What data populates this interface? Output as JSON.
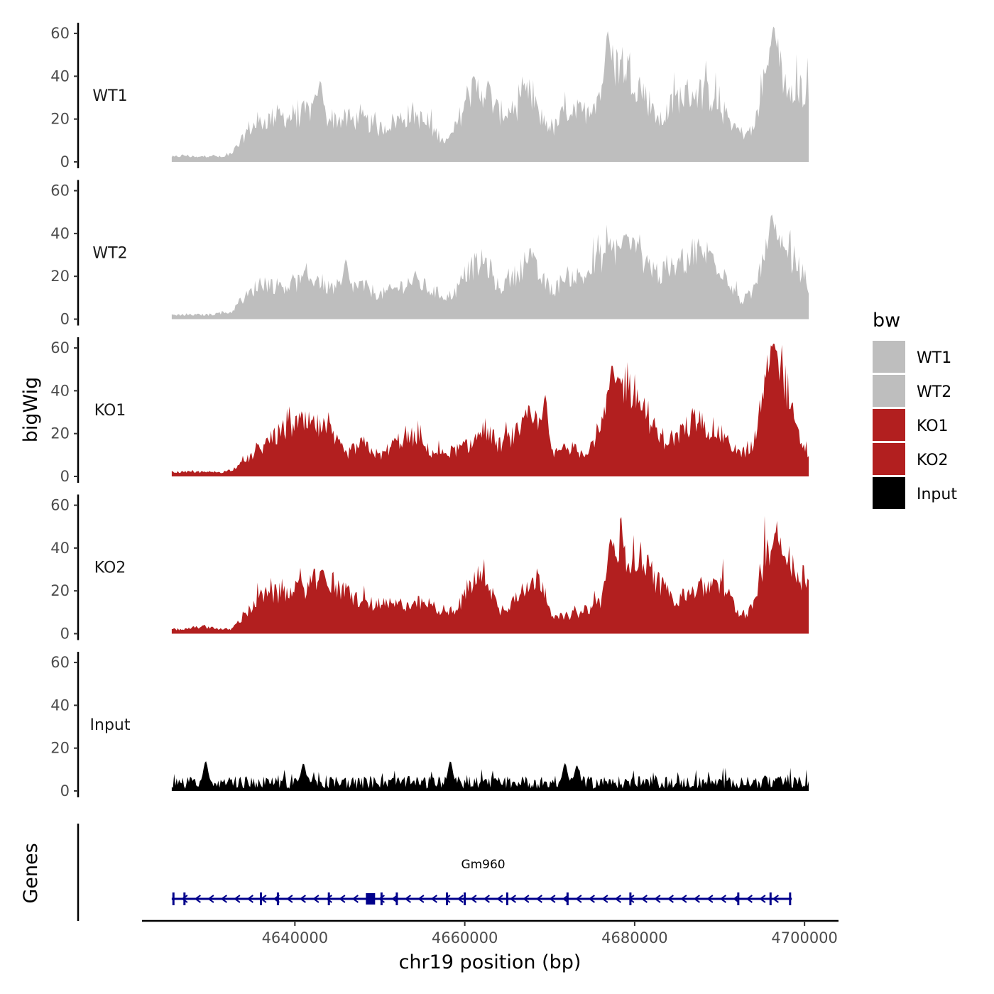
{
  "chart_data": {
    "type": "area",
    "ylabel": "bigWig",
    "xlabel": "chr19 position (bp)",
    "genes_label": "Genes",
    "xlim": [
      4622000,
      4704000
    ],
    "region": [
      4625500,
      4700500
    ],
    "ylim": [
      0,
      65
    ],
    "yticks": [
      0,
      20,
      40,
      60
    ],
    "ytick_labels": [
      "0",
      "20",
      "40",
      "60"
    ],
    "xticks": [
      4640000,
      4660000,
      4680000,
      4700000
    ],
    "xtick_labels": [
      "4640000",
      "4660000",
      "4680000",
      "4700000"
    ],
    "legend": {
      "title": "bw",
      "entries": [
        {
          "name": "WT1",
          "color": "#bebebe"
        },
        {
          "name": "WT2",
          "color": "#bebebe"
        },
        {
          "name": "KO1",
          "color": "#b21f1f"
        },
        {
          "name": "KO2",
          "color": "#b21f1f"
        },
        {
          "name": "Input",
          "color": "#000000"
        }
      ]
    },
    "series": [
      {
        "name": "WT1",
        "color": "#bebebe",
        "anchors": [
          [
            4625500,
            2
          ],
          [
            4627000,
            3
          ],
          [
            4628500,
            2
          ],
          [
            4630000,
            3
          ],
          [
            4631500,
            2
          ],
          [
            4632500,
            4
          ],
          [
            4633500,
            8
          ],
          [
            4634500,
            15
          ],
          [
            4636000,
            18
          ],
          [
            4638000,
            21
          ],
          [
            4640000,
            20
          ],
          [
            4642500,
            25
          ],
          [
            4644000,
            20
          ],
          [
            4646000,
            19
          ],
          [
            4648000,
            19
          ],
          [
            4650000,
            15
          ],
          [
            4652000,
            19
          ],
          [
            4654000,
            22
          ],
          [
            4656000,
            15
          ],
          [
            4658000,
            9
          ],
          [
            4659000,
            16
          ],
          [
            4660500,
            32
          ],
          [
            4662500,
            33
          ],
          [
            4664000,
            22
          ],
          [
            4666000,
            24
          ],
          [
            4667500,
            31
          ],
          [
            4669000,
            20
          ],
          [
            4670500,
            15
          ],
          [
            4672000,
            24
          ],
          [
            4674000,
            22
          ],
          [
            4676000,
            32
          ],
          [
            4677500,
            45
          ],
          [
            4679000,
            44
          ],
          [
            4681000,
            32
          ],
          [
            4683000,
            18
          ],
          [
            4685000,
            29
          ],
          [
            4687000,
            32
          ],
          [
            4689000,
            30
          ],
          [
            4690500,
            22
          ],
          [
            4692500,
            13
          ],
          [
            4694000,
            14
          ],
          [
            4695000,
            35
          ],
          [
            4696500,
            52
          ],
          [
            4697500,
            37
          ],
          [
            4699000,
            36
          ],
          [
            4700500,
            28
          ]
        ],
        "peaks": [
          [
            4643000,
            38
          ],
          [
            4676800,
            61
          ],
          [
            4696300,
            63
          ]
        ]
      },
      {
        "name": "WT2",
        "color": "#bebebe",
        "anchors": [
          [
            4625500,
            2
          ],
          [
            4627000,
            2
          ],
          [
            4628500,
            2
          ],
          [
            4630000,
            2
          ],
          [
            4631500,
            3
          ],
          [
            4632500,
            3
          ],
          [
            4633500,
            8
          ],
          [
            4634500,
            11
          ],
          [
            4636000,
            17
          ],
          [
            4638000,
            15
          ],
          [
            4640000,
            16
          ],
          [
            4642500,
            19
          ],
          [
            4644000,
            14
          ],
          [
            4646000,
            15
          ],
          [
            4648000,
            15
          ],
          [
            4650000,
            11
          ],
          [
            4652000,
            14
          ],
          [
            4654000,
            18
          ],
          [
            4656000,
            13
          ],
          [
            4658000,
            10
          ],
          [
            4659000,
            13
          ],
          [
            4660500,
            23
          ],
          [
            4662500,
            26
          ],
          [
            4664000,
            14
          ],
          [
            4666000,
            20
          ],
          [
            4667500,
            28
          ],
          [
            4669000,
            18
          ],
          [
            4670500,
            13
          ],
          [
            4672000,
            20
          ],
          [
            4674000,
            19
          ],
          [
            4676000,
            28
          ],
          [
            4677500,
            32
          ],
          [
            4679000,
            33
          ],
          [
            4681000,
            28
          ],
          [
            4683000,
            20
          ],
          [
            4685000,
            24
          ],
          [
            4687000,
            31
          ],
          [
            4689000,
            29
          ],
          [
            4690500,
            22
          ],
          [
            4692500,
            8
          ],
          [
            4694000,
            12
          ],
          [
            4695000,
            26
          ],
          [
            4696500,
            36
          ],
          [
            4697500,
            29
          ],
          [
            4699000,
            26
          ],
          [
            4700500,
            15
          ]
        ],
        "peaks": [
          [
            4646000,
            28
          ],
          [
            4696100,
            49
          ],
          [
            4679000,
            40
          ]
        ]
      },
      {
        "name": "KO1",
        "color": "#b21f1f",
        "anchors": [
          [
            4625500,
            2
          ],
          [
            4627000,
            2
          ],
          [
            4628500,
            2
          ],
          [
            4630000,
            2
          ],
          [
            4631500,
            2
          ],
          [
            4632500,
            3
          ],
          [
            4633500,
            5
          ],
          [
            4634500,
            8
          ],
          [
            4636000,
            13
          ],
          [
            4638000,
            19
          ],
          [
            4640000,
            24
          ],
          [
            4642500,
            23
          ],
          [
            4644000,
            20
          ],
          [
            4646000,
            10
          ],
          [
            4648000,
            15
          ],
          [
            4650000,
            9
          ],
          [
            4652000,
            16
          ],
          [
            4654000,
            18
          ],
          [
            4656000,
            11
          ],
          [
            4658000,
            11
          ],
          [
            4659000,
            12
          ],
          [
            4660500,
            14
          ],
          [
            4662500,
            22
          ],
          [
            4664000,
            14
          ],
          [
            4666000,
            19
          ],
          [
            4667500,
            26
          ],
          [
            4669000,
            22
          ],
          [
            4670500,
            10
          ],
          [
            4672000,
            14
          ],
          [
            4674000,
            10
          ],
          [
            4676000,
            22
          ],
          [
            4677500,
            38
          ],
          [
            4679000,
            44
          ],
          [
            4681000,
            32
          ],
          [
            4683000,
            16
          ],
          [
            4685000,
            18
          ],
          [
            4687000,
            26
          ],
          [
            4689000,
            22
          ],
          [
            4690500,
            18
          ],
          [
            4692500,
            10
          ],
          [
            4694000,
            14
          ],
          [
            4695000,
            36
          ],
          [
            4696500,
            58
          ],
          [
            4697500,
            48
          ],
          [
            4699000,
            20
          ],
          [
            4700500,
            10
          ]
        ],
        "peaks": [
          [
            4669500,
            38
          ],
          [
            4677300,
            52
          ],
          [
            4696200,
            61
          ]
        ]
      },
      {
        "name": "KO2",
        "color": "#b21f1f",
        "anchors": [
          [
            4625500,
            2
          ],
          [
            4627000,
            2
          ],
          [
            4628500,
            3
          ],
          [
            4630000,
            3
          ],
          [
            4631500,
            2
          ],
          [
            4632500,
            2
          ],
          [
            4633500,
            6
          ],
          [
            4634500,
            10
          ],
          [
            4636000,
            17
          ],
          [
            4638000,
            18
          ],
          [
            4640000,
            19
          ],
          [
            4642500,
            24
          ],
          [
            4644000,
            21
          ],
          [
            4646000,
            19
          ],
          [
            4648000,
            14
          ],
          [
            4650000,
            13
          ],
          [
            4652000,
            13
          ],
          [
            4654000,
            14
          ],
          [
            4656000,
            13
          ],
          [
            4658000,
            10
          ],
          [
            4659000,
            10
          ],
          [
            4660500,
            22
          ],
          [
            4662500,
            28
          ],
          [
            4664000,
            10
          ],
          [
            4666000,
            16
          ],
          [
            4667500,
            24
          ],
          [
            4669000,
            25
          ],
          [
            4670500,
            7
          ],
          [
            4672000,
            8
          ],
          [
            4674000,
            10
          ],
          [
            4676000,
            15
          ],
          [
            4677500,
            35
          ],
          [
            4679000,
            38
          ],
          [
            4681000,
            33
          ],
          [
            4683000,
            22
          ],
          [
            4685000,
            16
          ],
          [
            4687000,
            20
          ],
          [
            4689000,
            22
          ],
          [
            4690500,
            21
          ],
          [
            4692500,
            8
          ],
          [
            4694000,
            12
          ],
          [
            4695000,
            30
          ],
          [
            4696500,
            42
          ],
          [
            4697500,
            36
          ],
          [
            4699000,
            28
          ],
          [
            4700500,
            25
          ]
        ],
        "peaks": [
          [
            4643300,
            30
          ],
          [
            4677100,
            44
          ],
          [
            4696700,
            46
          ]
        ]
      },
      {
        "name": "Input",
        "color": "#000000",
        "anchors": [
          [
            4625500,
            4
          ],
          [
            4632500,
            4
          ],
          [
            4640000,
            4
          ],
          [
            4650000,
            4
          ],
          [
            4660000,
            4
          ],
          [
            4670000,
            4
          ],
          [
            4680000,
            4
          ],
          [
            4690000,
            4
          ],
          [
            4700500,
            4
          ]
        ],
        "peaks": [
          [
            4629500,
            14
          ],
          [
            4641000,
            13
          ],
          [
            4658300,
            14
          ],
          [
            4671800,
            13
          ],
          [
            4673200,
            12
          ]
        ]
      }
    ],
    "gene": {
      "name": "Gm960",
      "start": 4625500,
      "end": 4698500,
      "strand": "-",
      "color": "#00008b",
      "exons": [
        4625700,
        4627000,
        4636000,
        4638000,
        4644000,
        4648900,
        4650200,
        4652000,
        4657900,
        4660000,
        4665000,
        4672100,
        4679500,
        4692200,
        4696000,
        4698300
      ]
    }
  }
}
